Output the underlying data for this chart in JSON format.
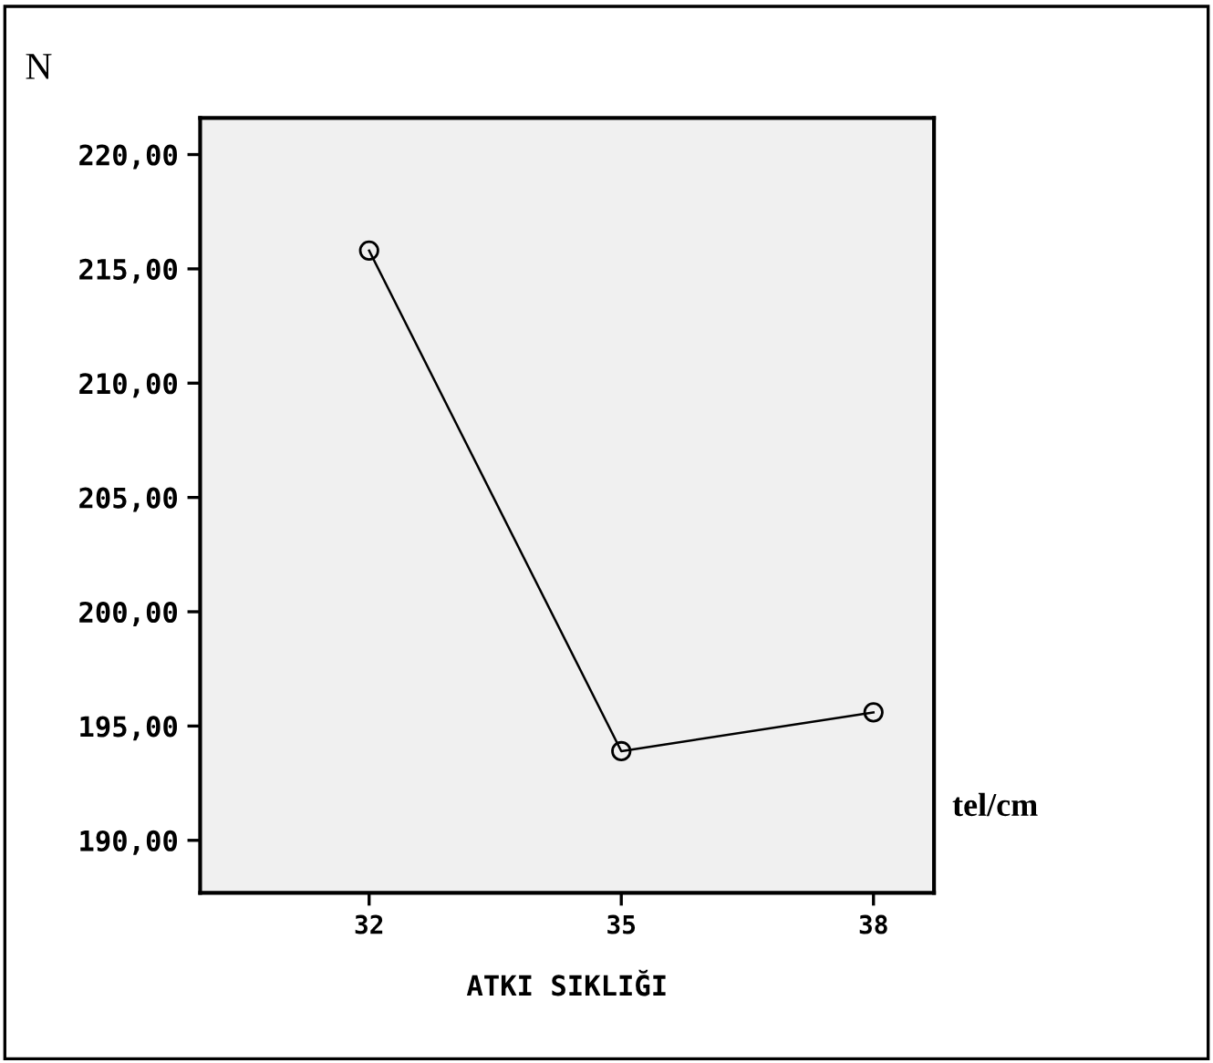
{
  "chart_data": {
    "type": "line",
    "ylabel": "N",
    "xlabel": "ATKI SIKLIĞI",
    "annotations": [
      "tel/cm"
    ],
    "categories": [
      "32",
      "35",
      "38"
    ],
    "series": [
      {
        "color": "#000000",
        "values": [
          215.8,
          193.9,
          195.6
        ]
      }
    ],
    "marker": "circle",
    "line_style": "solid",
    "grid": false,
    "legend": false,
    "ylim": [
      187.7,
      221.6
    ],
    "yticks": [
      {
        "value": 190,
        "label": "190,00"
      },
      {
        "value": 195,
        "label": "195,00"
      },
      {
        "value": 200,
        "label": "200,00"
      },
      {
        "value": 205,
        "label": "205,00"
      },
      {
        "value": 210,
        "label": "210,00"
      },
      {
        "value": 215,
        "label": "215,00"
      },
      {
        "value": 220,
        "label": "220,00"
      }
    ]
  }
}
